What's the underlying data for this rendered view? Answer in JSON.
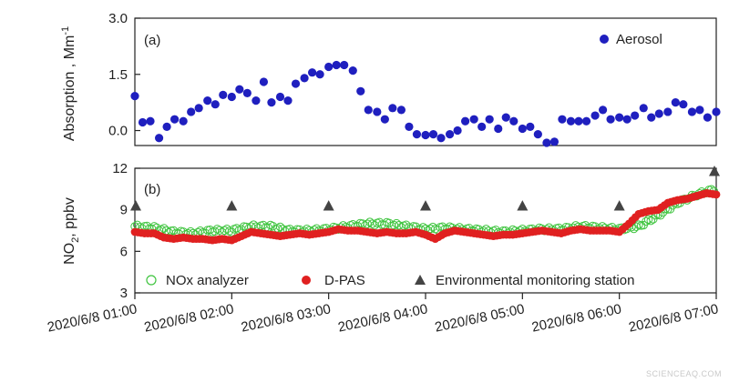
{
  "chart_data": [
    {
      "type": "scatter",
      "panel_label": "(a)",
      "ylabel": "Absorption , Mm",
      "ylabel_sup": "-1",
      "ylim": [
        -0.4,
        3.0
      ],
      "yticks": [
        "3.0",
        "1.5",
        "0.0"
      ],
      "ytick_values": [
        3.0,
        1.5,
        0.0
      ],
      "xlim": [
        0,
        6
      ],
      "grid": false,
      "legend_position": "top-right",
      "series": [
        {
          "name": "Aerosol",
          "color": "#1f1fbf",
          "marker": "filled-circle",
          "x": [
            0.0,
            0.08,
            0.16,
            0.25,
            0.33,
            0.41,
            0.5,
            0.58,
            0.66,
            0.75,
            0.83,
            0.91,
            1.0,
            1.08,
            1.16,
            1.25,
            1.33,
            1.41,
            1.5,
            1.58,
            1.66,
            1.75,
            1.83,
            1.91,
            2.0,
            2.08,
            2.16,
            2.25,
            2.33,
            2.41,
            2.5,
            2.58,
            2.66,
            2.75,
            2.83,
            2.91,
            3.0,
            3.08,
            3.16,
            3.25,
            3.33,
            3.41,
            3.5,
            3.58,
            3.66,
            3.75,
            3.83,
            3.91,
            4.0,
            4.08,
            4.16,
            4.25,
            4.33,
            4.41,
            4.5,
            4.58,
            4.66,
            4.75,
            4.83,
            4.91,
            5.0,
            5.08,
            5.16,
            5.25,
            5.33,
            5.41,
            5.5,
            5.58,
            5.66,
            5.75,
            5.83,
            5.91,
            6.0
          ],
          "y": [
            0.92,
            0.22,
            0.25,
            -0.2,
            0.1,
            0.3,
            0.25,
            0.5,
            0.6,
            0.8,
            0.7,
            0.95,
            0.9,
            1.1,
            1.0,
            0.8,
            1.3,
            0.75,
            0.9,
            0.8,
            1.25,
            1.4,
            1.55,
            1.5,
            1.7,
            1.75,
            1.75,
            1.6,
            1.05,
            0.55,
            0.5,
            0.3,
            0.6,
            0.55,
            0.1,
            -0.1,
            -0.12,
            -0.1,
            -0.2,
            -0.1,
            0.0,
            0.25,
            0.3,
            0.1,
            0.3,
            0.05,
            0.35,
            0.25,
            0.05,
            0.1,
            -0.1,
            -0.45,
            -0.3,
            0.3,
            0.25,
            0.25,
            0.25,
            0.4,
            0.55,
            0.3,
            0.35,
            0.3,
            0.4,
            0.6,
            0.35,
            0.45,
            0.5,
            0.75,
            0.7,
            0.5,
            0.55,
            0.35,
            0.5
          ]
        }
      ]
    },
    {
      "type": "scatter",
      "panel_label": "(b)",
      "ylabel": "NO",
      "ylabel_sub": "2",
      "ylabel_rest": ", ppbv",
      "ylim": [
        3,
        12
      ],
      "yticks": [
        "12",
        "9",
        "6",
        "3"
      ],
      "ytick_values": [
        12,
        9,
        6,
        3
      ],
      "xlim": [
        0,
        6
      ],
      "grid": false,
      "legend_position": "bottom",
      "categories": [
        "2020/6/8 01:00",
        "2020/6/8 02:00",
        "2020/6/8 03:00",
        "2020/6/8 04:00",
        "2020/6/8 05:00",
        "2020/6/8 06:00",
        "2020/6/8 07:00"
      ],
      "series": [
        {
          "name": "NOx analyzer",
          "color": "#3fc43f",
          "marker": "hollow-circle",
          "x": [
            0.0,
            0.2,
            0.4,
            0.6,
            0.8,
            1.0,
            1.2,
            1.4,
            1.6,
            1.8,
            2.0,
            2.2,
            2.4,
            2.6,
            2.8,
            3.0,
            3.2,
            3.4,
            3.6,
            3.8,
            4.0,
            4.2,
            4.4,
            4.6,
            4.8,
            5.0,
            5.2,
            5.4,
            5.6,
            5.8,
            6.0
          ],
          "y": [
            7.8,
            7.7,
            7.4,
            7.3,
            7.5,
            7.5,
            7.8,
            7.8,
            7.5,
            7.5,
            7.6,
            7.8,
            8.0,
            8.0,
            7.8,
            7.6,
            7.7,
            7.6,
            7.5,
            7.4,
            7.5,
            7.6,
            7.6,
            7.8,
            7.7,
            7.6,
            7.8,
            8.6,
            9.5,
            10.1,
            10.5
          ]
        },
        {
          "name": "D-PAS",
          "color": "#e02020",
          "marker": "filled-circle",
          "x": [
            0.0,
            0.1,
            0.2,
            0.3,
            0.4,
            0.5,
            0.6,
            0.7,
            0.8,
            0.9,
            1.0,
            1.1,
            1.2,
            1.3,
            1.4,
            1.5,
            1.6,
            1.7,
            1.8,
            1.9,
            2.0,
            2.1,
            2.2,
            2.3,
            2.4,
            2.5,
            2.6,
            2.7,
            2.8,
            2.9,
            3.0,
            3.1,
            3.2,
            3.3,
            3.4,
            3.5,
            3.6,
            3.7,
            3.8,
            3.9,
            4.0,
            4.1,
            4.2,
            4.3,
            4.4,
            4.5,
            4.6,
            4.7,
            4.8,
            4.9,
            5.0,
            5.1,
            5.2,
            5.3,
            5.4,
            5.5,
            5.6,
            5.7,
            5.8,
            5.9,
            6.0
          ],
          "y": [
            7.4,
            7.3,
            7.3,
            7.0,
            6.9,
            7.0,
            6.9,
            6.9,
            6.8,
            6.9,
            6.8,
            7.1,
            7.4,
            7.3,
            7.2,
            7.1,
            7.2,
            7.3,
            7.2,
            7.3,
            7.4,
            7.6,
            7.5,
            7.5,
            7.4,
            7.3,
            7.4,
            7.3,
            7.3,
            7.4,
            7.2,
            6.9,
            7.3,
            7.5,
            7.4,
            7.3,
            7.2,
            7.1,
            7.2,
            7.2,
            7.3,
            7.4,
            7.5,
            7.4,
            7.3,
            7.5,
            7.6,
            7.5,
            7.5,
            7.5,
            7.4,
            8.0,
            8.7,
            8.9,
            9.0,
            9.5,
            9.7,
            9.8,
            10.0,
            10.2,
            10.1
          ]
        },
        {
          "name": "Environmental monitoring station",
          "color": "#444444",
          "marker": "filled-triangle",
          "x": [
            0,
            1,
            2,
            3,
            4,
            5,
            6
          ],
          "y": [
            9.3,
            9.3,
            9.3,
            9.3,
            9.3,
            9.3,
            11.8
          ]
        }
      ]
    }
  ],
  "watermark": "SCIENCEAQ.COM"
}
